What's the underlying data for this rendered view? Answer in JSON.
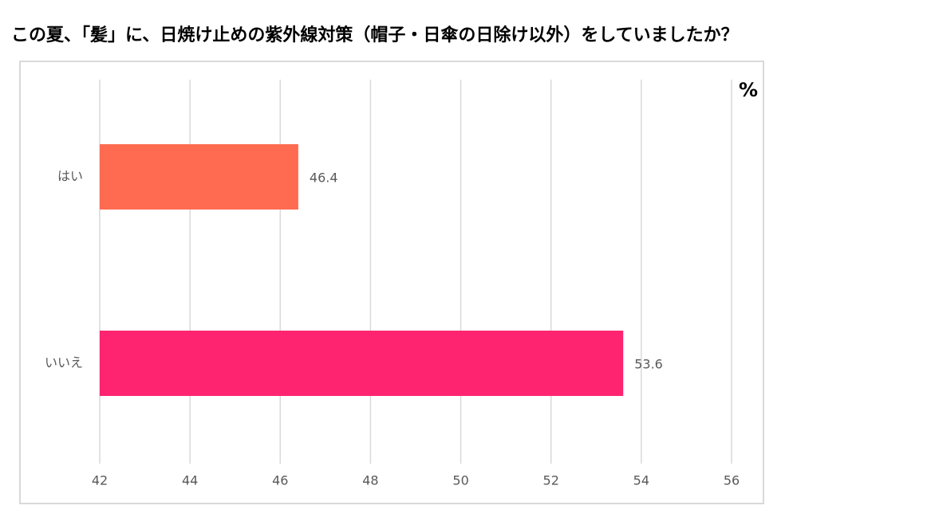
{
  "chart_data": {
    "type": "hbar",
    "title": "この夏、「髪」に、日焼け止めの紫外線対策（帽子・日傘の日除け以外）をしていましたか？",
    "unit_label": "%",
    "categories": [
      "はい",
      "いいえ"
    ],
    "values": [
      46.4,
      53.6
    ],
    "colors": [
      "#ff6b50",
      "#ff2470"
    ],
    "xlim": [
      42,
      56
    ],
    "xticks": [
      42,
      44,
      46,
      48,
      50,
      52,
      54,
      56
    ],
    "grid": true
  }
}
